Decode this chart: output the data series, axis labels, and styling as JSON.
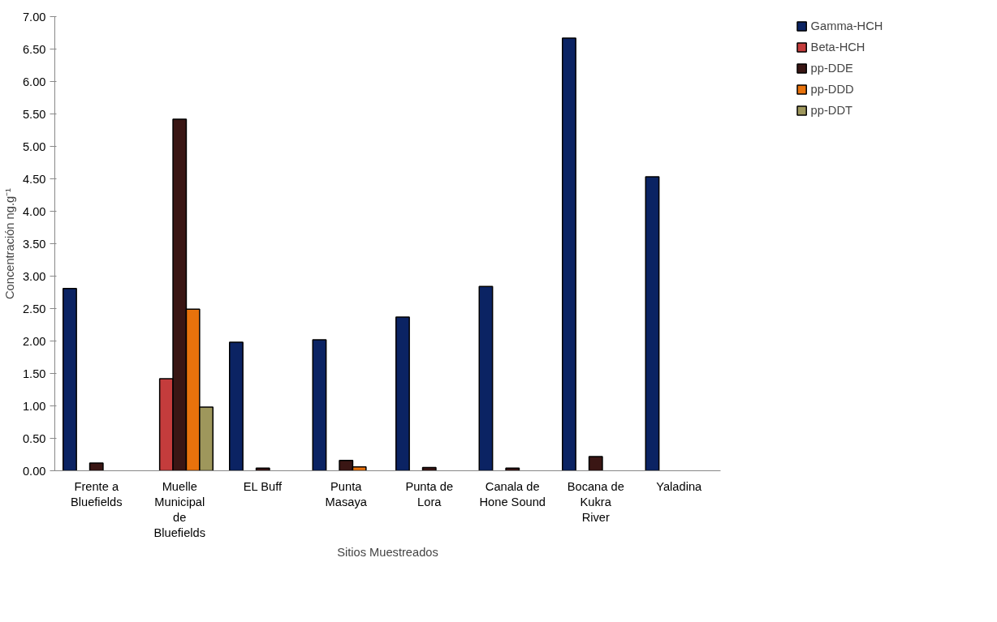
{
  "chart_data": {
    "type": "bar",
    "xlabel": "Sitios Muestreados",
    "ylabel": "Concentración ng.g⁻¹",
    "categories": [
      "Frente a Bluefields",
      "Muelle Municipal de Bluefields",
      "EL Buff",
      "Punta Masaya",
      "Punta de Lora",
      "Canala de Hone Sound",
      "Bocana de Kukra River",
      "Yaladina"
    ],
    "series": [
      {
        "name": "Gamma-HCH",
        "color": "#0b2363",
        "values": [
          2.81,
          null,
          1.98,
          2.02,
          2.37,
          2.84,
          6.67,
          4.53
        ]
      },
      {
        "name": "Beta-HCH",
        "color": "#c43c3c",
        "values": [
          null,
          1.42,
          null,
          null,
          null,
          null,
          null,
          null
        ]
      },
      {
        "name": "pp-DDE",
        "color": "#3a1614",
        "values": [
          0.12,
          5.42,
          0.04,
          0.16,
          0.05,
          0.04,
          0.22,
          null
        ]
      },
      {
        "name": "pp-DDD",
        "color": "#e8720c",
        "values": [
          null,
          2.49,
          null,
          0.06,
          null,
          null,
          null,
          null
        ]
      },
      {
        "name": "pp-DDT",
        "color": "#9e975c",
        "values": [
          null,
          0.98,
          null,
          null,
          null,
          null,
          null,
          null
        ]
      }
    ],
    "ylim": [
      0,
      7
    ],
    "yticks": [
      {
        "value": 0,
        "label": "0.00"
      },
      {
        "value": 0.5,
        "label": "0.50"
      },
      {
        "value": 1,
        "label": "1.00"
      },
      {
        "value": 1.5,
        "label": "1.50"
      },
      {
        "value": 2,
        "label": "2.00"
      },
      {
        "value": 2.5,
        "label": "2.50"
      },
      {
        "value": 3,
        "label": "3.00"
      },
      {
        "value": 3.5,
        "label": "3.50"
      },
      {
        "value": 4,
        "label": "4.00"
      },
      {
        "value": 4.5,
        "label": "4.50"
      },
      {
        "value": 5,
        "label": "5.00"
      },
      {
        "value": 5.5,
        "label": "5.50"
      },
      {
        "value": 6,
        "label": "6.00"
      },
      {
        "value": 6.5,
        "label": "6.50"
      },
      {
        "value": 7,
        "label": "7.00"
      }
    ],
    "legend": "top right",
    "grid": false
  }
}
